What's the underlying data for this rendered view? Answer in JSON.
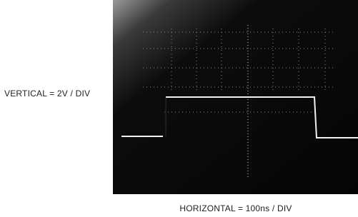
{
  "vertical_scale": "VERTICAL = 2V / DIV",
  "horizontal_scale": "HORIZONTAL = 100ns / DIV"
}
